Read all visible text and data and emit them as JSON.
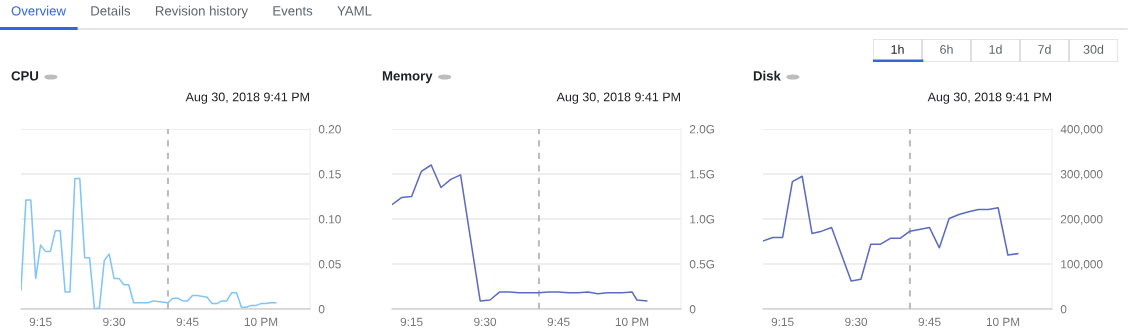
{
  "chart_data": [
    {
      "type": "other",
      "annotations": [
        "Overview",
        "Details",
        "Revision history",
        "Events",
        "YAML"
      ]
    },
    {
      "type": "other",
      "annotations": [
        "1h",
        "6h",
        "1d",
        "7d",
        "30d"
      ]
    },
    {
      "type": "line",
      "title": "CPU",
      "subtitle": "Aug 30, 2018 9:41 PM",
      "color": "#80c4f8",
      "grid": "y",
      "legend": false,
      "marker": "none",
      "line_style": "solid",
      "x": [
        "2018-08-30T21:11",
        "2018-08-30T21:12",
        "2018-08-30T21:13",
        "2018-08-30T21:14",
        "2018-08-30T21:15",
        "2018-08-30T21:16",
        "2018-08-30T21:17",
        "2018-08-30T21:18",
        "2018-08-30T21:19",
        "2018-08-30T21:20",
        "2018-08-30T21:21",
        "2018-08-30T21:22",
        "2018-08-30T21:23",
        "2018-08-30T21:24",
        "2018-08-30T21:25",
        "2018-08-30T21:26",
        "2018-08-30T21:27",
        "2018-08-30T21:28",
        "2018-08-30T21:29",
        "2018-08-30T21:30",
        "2018-08-30T21:31",
        "2018-08-30T21:32",
        "2018-08-30T21:33",
        "2018-08-30T21:34",
        "2018-08-30T21:37",
        "2018-08-30T21:38",
        "2018-08-30T21:41",
        "2018-08-30T21:42",
        "2018-08-30T21:43",
        "2018-08-30T21:44",
        "2018-08-30T21:45",
        "2018-08-30T21:46",
        "2018-08-30T21:47",
        "2018-08-30T21:49",
        "2018-08-30T21:50",
        "2018-08-30T21:51",
        "2018-08-30T21:52",
        "2018-08-30T21:53",
        "2018-08-30T21:54",
        "2018-08-30T21:55",
        "2018-08-30T21:56",
        "2018-08-30T21:57",
        "2018-08-30T21:58",
        "2018-08-30T21:59",
        "2018-08-30T22:00",
        "2018-08-30T22:01",
        "2018-08-30T22:02",
        "2018-08-30T22:03"
      ],
      "values": [
        0.021,
        0.121,
        0.121,
        0.034,
        0.071,
        0.064,
        0.064,
        0.087,
        0.087,
        0.019,
        0.019,
        0.145,
        0.145,
        0.057,
        0.057,
        0.0,
        0.001,
        0.054,
        0.061,
        0.034,
        0.034,
        0.027,
        0.027,
        0.007,
        0.007,
        0.009,
        0.007,
        0.012,
        0.012,
        0.009,
        0.009,
        0.015,
        0.015,
        0.013,
        0.006,
        0.006,
        0.009,
        0.009,
        0.018,
        0.018,
        0.002,
        0.002,
        0.004,
        0.004,
        0.006,
        0.006,
        0.007,
        0.007
      ],
      "xlim": [
        "2018-08-30T21:11",
        "2018-08-30T22:10"
      ],
      "xticks": [
        {
          "value": "2018-08-30T21:15",
          "label": "9:15"
        },
        {
          "value": "2018-08-30T21:30",
          "label": "9:30"
        },
        {
          "value": "2018-08-30T21:45",
          "label": "9:45"
        },
        {
          "value": "2018-08-30T22:00",
          "label": "10 PM"
        }
      ],
      "ylim": [
        0,
        0.2
      ],
      "yticks": [
        0,
        {
          "value": 0.05,
          "label": "0.05"
        },
        {
          "value": 0.1,
          "label": "0.10"
        },
        {
          "value": 0.15,
          "label": "0.15"
        },
        {
          "value": 0.2,
          "label": "0.20"
        }
      ],
      "ref_lines": [
        {
          "axis": "x",
          "value": "2018-08-30T21:41",
          "color": "#bdbdbd",
          "line_style": "dashed"
        }
      ]
    },
    {
      "type": "line",
      "title": "Memory",
      "subtitle": "Aug 30, 2018 9:41 PM",
      "color": "#5c6bc0",
      "grid": "y",
      "legend": false,
      "marker": "none",
      "line_style": "solid",
      "x": [
        "2018-08-30T21:11",
        "2018-08-30T21:13",
        "2018-08-30T21:15",
        "2018-08-30T21:17",
        "2018-08-30T21:19",
        "2018-08-30T21:21",
        "2018-08-30T21:23",
        "2018-08-30T21:25",
        "2018-08-30T21:29",
        "2018-08-30T21:31",
        "2018-08-30T21:33",
        "2018-08-30T21:35",
        "2018-08-30T21:37",
        "2018-08-30T21:41",
        "2018-08-30T21:43",
        "2018-08-30T21:45",
        "2018-08-30T21:47",
        "2018-08-30T21:49",
        "2018-08-30T21:51",
        "2018-08-30T21:53",
        "2018-08-30T21:55",
        "2018-08-30T21:58",
        "2018-08-30T22:00",
        "2018-08-30T22:01",
        "2018-08-30T22:03"
      ],
      "values": [
        1.16,
        1.24,
        1.25,
        1.53,
        1.6,
        1.35,
        1.44,
        1.49,
        0.09,
        0.1,
        0.19,
        0.19,
        0.18,
        0.18,
        0.19,
        0.19,
        0.18,
        0.18,
        0.19,
        0.17,
        0.18,
        0.18,
        0.19,
        0.1,
        0.09
      ],
      "xlim": [
        "2018-08-30T21:11",
        "2018-08-30T22:10"
      ],
      "xticks": [
        {
          "value": "2018-08-30T21:15",
          "label": "9:15"
        },
        {
          "value": "2018-08-30T21:30",
          "label": "9:30"
        },
        {
          "value": "2018-08-30T21:45",
          "label": "9:45"
        },
        {
          "value": "2018-08-30T22:00",
          "label": "10 PM"
        }
      ],
      "ylim": [
        0,
        2.0
      ],
      "yticks": [
        0,
        {
          "value": 0.5,
          "label": "0.5G"
        },
        {
          "value": 1.0,
          "label": "1.0G"
        },
        {
          "value": 1.5,
          "label": "1.5G"
        },
        {
          "value": 2.0,
          "label": "2.0G"
        }
      ],
      "ref_lines": [
        {
          "axis": "x",
          "value": "2018-08-30T21:41",
          "color": "#bdbdbd",
          "line_style": "dashed"
        }
      ]
    },
    {
      "type": "line",
      "title": "Disk",
      "subtitle": "Aug 30, 2018 9:41 PM",
      "color": "#5c6bc0",
      "grid": "y",
      "legend": false,
      "marker": "none",
      "line_style": "solid",
      "x": [
        "2018-08-30T21:11",
        "2018-08-30T21:13",
        "2018-08-30T21:15",
        "2018-08-30T21:17",
        "2018-08-30T21:19",
        "2018-08-30T21:21",
        "2018-08-30T21:23",
        "2018-08-30T21:25",
        "2018-08-30T21:29",
        "2018-08-30T21:31",
        "2018-08-30T21:33",
        "2018-08-30T21:35",
        "2018-08-30T21:37",
        "2018-08-30T21:39",
        "2018-08-30T21:41",
        "2018-08-30T21:45",
        "2018-08-30T21:47",
        "2018-08-30T21:49",
        "2018-08-30T21:51",
        "2018-08-30T21:53",
        "2018-08-30T21:55",
        "2018-08-30T21:57",
        "2018-08-30T21:59",
        "2018-08-30T22:01",
        "2018-08-30T22:03"
      ],
      "values": [
        151000,
        159000,
        159000,
        283000,
        295000,
        168000,
        173000,
        181000,
        62000,
        66000,
        144000,
        144000,
        157000,
        157000,
        173000,
        181000,
        136000,
        201000,
        210000,
        216000,
        221000,
        221000,
        225000,
        120000,
        123000
      ],
      "xlim": [
        "2018-08-30T21:11",
        "2018-08-30T22:10"
      ],
      "xticks": [
        {
          "value": "2018-08-30T21:15",
          "label": "9:15"
        },
        {
          "value": "2018-08-30T21:30",
          "label": "9:30"
        },
        {
          "value": "2018-08-30T21:45",
          "label": "9:45"
        },
        {
          "value": "2018-08-30T22:00",
          "label": "10 PM"
        }
      ],
      "ylim": [
        0,
        400000
      ],
      "yticks": [
        0,
        {
          "value": 100000,
          "label": "100,000"
        },
        {
          "value": 200000,
          "label": "200,000"
        },
        {
          "value": 300000,
          "label": "300,000"
        },
        {
          "value": 400000,
          "label": "400,000"
        }
      ],
      "ref_lines": [
        {
          "axis": "x",
          "value": "2018-08-30T21:41",
          "color": "#bdbdbd",
          "line_style": "dashed"
        }
      ]
    }
  ]
}
